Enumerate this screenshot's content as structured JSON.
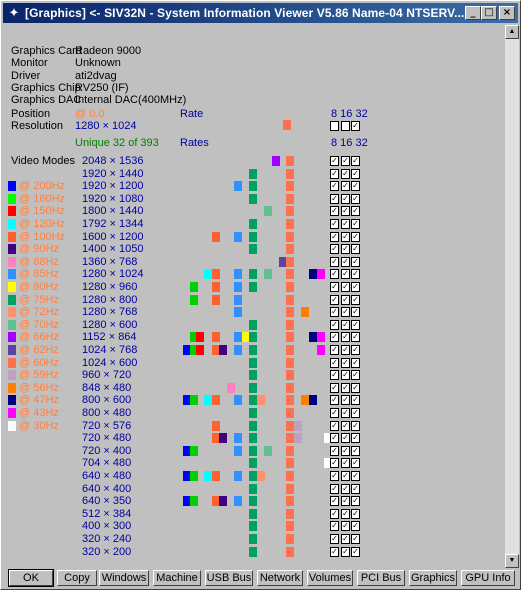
{
  "window": {
    "title": "[Graphics] <- SIV32N - System Information Viewer V5.86 Name-04 NTSERV...",
    "min_glyph": "_",
    "max_glyph": "□",
    "close_glyph": "×"
  },
  "info": [
    {
      "label": "Graphics Card",
      "value": "Radeon 9000"
    },
    {
      "label": "Monitor",
      "value": "Unknown"
    },
    {
      "label": "Driver",
      "value": "ati2dvag"
    },
    {
      "label": "Graphics Chip",
      "value": "RV250 (IF)"
    },
    {
      "label": "Graphics DAC",
      "value": "Internal DAC(400MHz)"
    }
  ],
  "position": {
    "label": "Position",
    "value": "@ 0.0",
    "rate_label": "Rate",
    "bpp_header": "8 16 32"
  },
  "resolution": {
    "label": "Resolution",
    "value": "1280 × 1024"
  },
  "unique": {
    "text": "Unique 32 of 393",
    "rates_label": "Rates",
    "bpp_header": "8 16 32"
  },
  "video_modes_label": "Video Modes",
  "modes": [
    "2048 × 1536",
    "1920 × 1440",
    "1920 × 1200",
    "1920 × 1080",
    "1800 × 1440",
    "1792 × 1344",
    "1600 × 1200",
    "1400 × 1050",
    "1360 × 768",
    "1280 × 1024",
    "1280 × 960",
    "1280 × 800",
    "1280 × 768",
    "1280 × 600",
    "1152 × 864",
    "1024 × 768",
    "1024 × 600",
    "960 × 720",
    "848 × 480",
    "800 × 600",
    "800 × 480",
    "720 × 576",
    "720 × 480",
    "720 × 400",
    "704 × 480",
    "640 × 480",
    "640 × 400",
    "640 × 350",
    "512 × 384",
    "400 × 300",
    "320 × 240",
    "320 × 200"
  ],
  "legend": [
    {
      "label": "@ 200Hz",
      "color": "#0000ff"
    },
    {
      "label": "@ 160Hz",
      "color": "#00ff00"
    },
    {
      "label": "@ 150Hz",
      "color": "#ff0000"
    },
    {
      "label": "@ 120Hz",
      "color": "#00ffff"
    },
    {
      "label": "@ 100Hz",
      "color": "#ff6030"
    },
    {
      "label": "@ 90Hz",
      "color": "#400080"
    },
    {
      "label": "@ 88Hz",
      "color": "#ff80c0"
    },
    {
      "label": "@ 85Hz",
      "color": "#3090ff"
    },
    {
      "label": "@ 80Hz",
      "color": "#ffff00"
    },
    {
      "label": "@ 75Hz",
      "color": "#00a060"
    },
    {
      "label": "@ 72Hz",
      "color": "#ff9070"
    },
    {
      "label": "@ 70Hz",
      "color": "#60c090"
    },
    {
      "label": "@ 66Hz",
      "color": "#a000ff"
    },
    {
      "label": "@ 62Hz",
      "color": "#6040a0"
    },
    {
      "label": "@ 60Hz",
      "color": "#ff7050"
    },
    {
      "label": "@ 59Hz",
      "color": "#c0a0c0"
    },
    {
      "label": "@ 56Hz",
      "color": "#ff8000"
    },
    {
      "label": "@ 47Hz",
      "color": "#000080"
    },
    {
      "label": "@ 43Hz",
      "color": "#ff00ff"
    },
    {
      "label": "@ 30Hz",
      "color": "#ffffff"
    }
  ],
  "buttons": [
    "OK",
    "Copy",
    "Windows",
    "Machine",
    "USB Bus",
    "Network",
    "Volumes",
    "PCI Bus",
    "Graphics",
    "GPU Info"
  ]
}
